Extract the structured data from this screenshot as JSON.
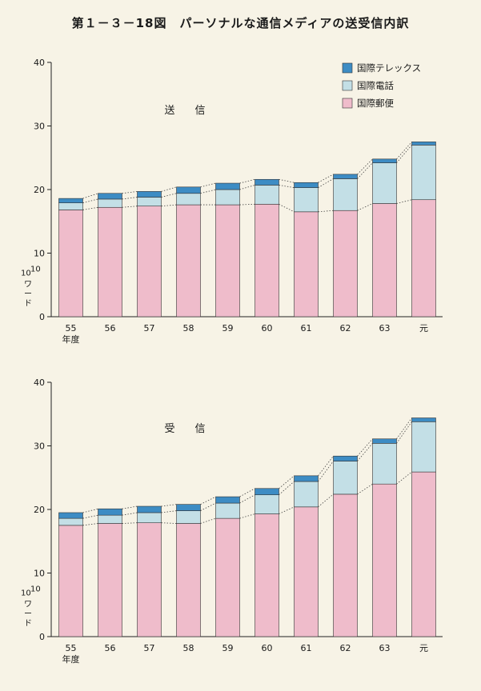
{
  "figure_title": "第１－３－18図　パーソナルな通信メディアの送受信内訳",
  "colors": {
    "telex": "#3d8cc4",
    "phone": "#c3dfe6",
    "mail": "#efbccb",
    "background": "#f7f3e6"
  },
  "legend": [
    {
      "key": "telex",
      "label": "国際テレックス"
    },
    {
      "key": "phone",
      "label": "国際電話"
    },
    {
      "key": "mail",
      "label": "国際郵便"
    }
  ],
  "axis": {
    "ylabel_unit": "10",
    "ylabel_exp": "10",
    "ylabel_chars": [
      "ワ",
      "ー",
      "ド"
    ],
    "x_suffix": "年度"
  },
  "chart_data": [
    {
      "type": "bar",
      "stacked": true,
      "title": "送　信",
      "categories": [
        "55",
        "56",
        "57",
        "58",
        "59",
        "60",
        "61",
        "62",
        "63",
        "元"
      ],
      "ylim": [
        0,
        40
      ],
      "yticks": [
        0,
        10,
        20,
        30,
        40
      ],
      "series": [
        {
          "name": "国際郵便",
          "values": [
            16.8,
            17.2,
            17.4,
            17.6,
            17.6,
            17.7,
            16.5,
            16.7,
            17.8,
            18.4
          ]
        },
        {
          "name": "国際電話",
          "values": [
            1.1,
            1.3,
            1.4,
            1.8,
            2.4,
            3.0,
            3.8,
            5.0,
            6.4,
            8.6
          ]
        },
        {
          "name": "国際テレックス",
          "values": [
            0.7,
            0.9,
            0.9,
            1.0,
            1.0,
            0.9,
            0.8,
            0.7,
            0.6,
            0.5
          ]
        }
      ]
    },
    {
      "type": "bar",
      "stacked": true,
      "title": "受　信",
      "categories": [
        "55",
        "56",
        "57",
        "58",
        "59",
        "60",
        "61",
        "62",
        "63",
        "元"
      ],
      "ylim": [
        0,
        40
      ],
      "yticks": [
        0,
        10,
        20,
        30,
        40
      ],
      "series": [
        {
          "name": "国際郵便",
          "values": [
            17.5,
            17.8,
            17.9,
            17.8,
            18.6,
            19.3,
            20.4,
            22.4,
            24.0,
            25.9
          ]
        },
        {
          "name": "国際電話",
          "values": [
            1.1,
            1.3,
            1.6,
            2.0,
            2.4,
            3.0,
            4.0,
            5.2,
            6.4,
            7.9
          ]
        },
        {
          "name": "国際テレックス",
          "values": [
            0.9,
            1.0,
            1.0,
            1.0,
            1.0,
            1.0,
            0.9,
            0.8,
            0.7,
            0.6
          ]
        }
      ]
    }
  ]
}
